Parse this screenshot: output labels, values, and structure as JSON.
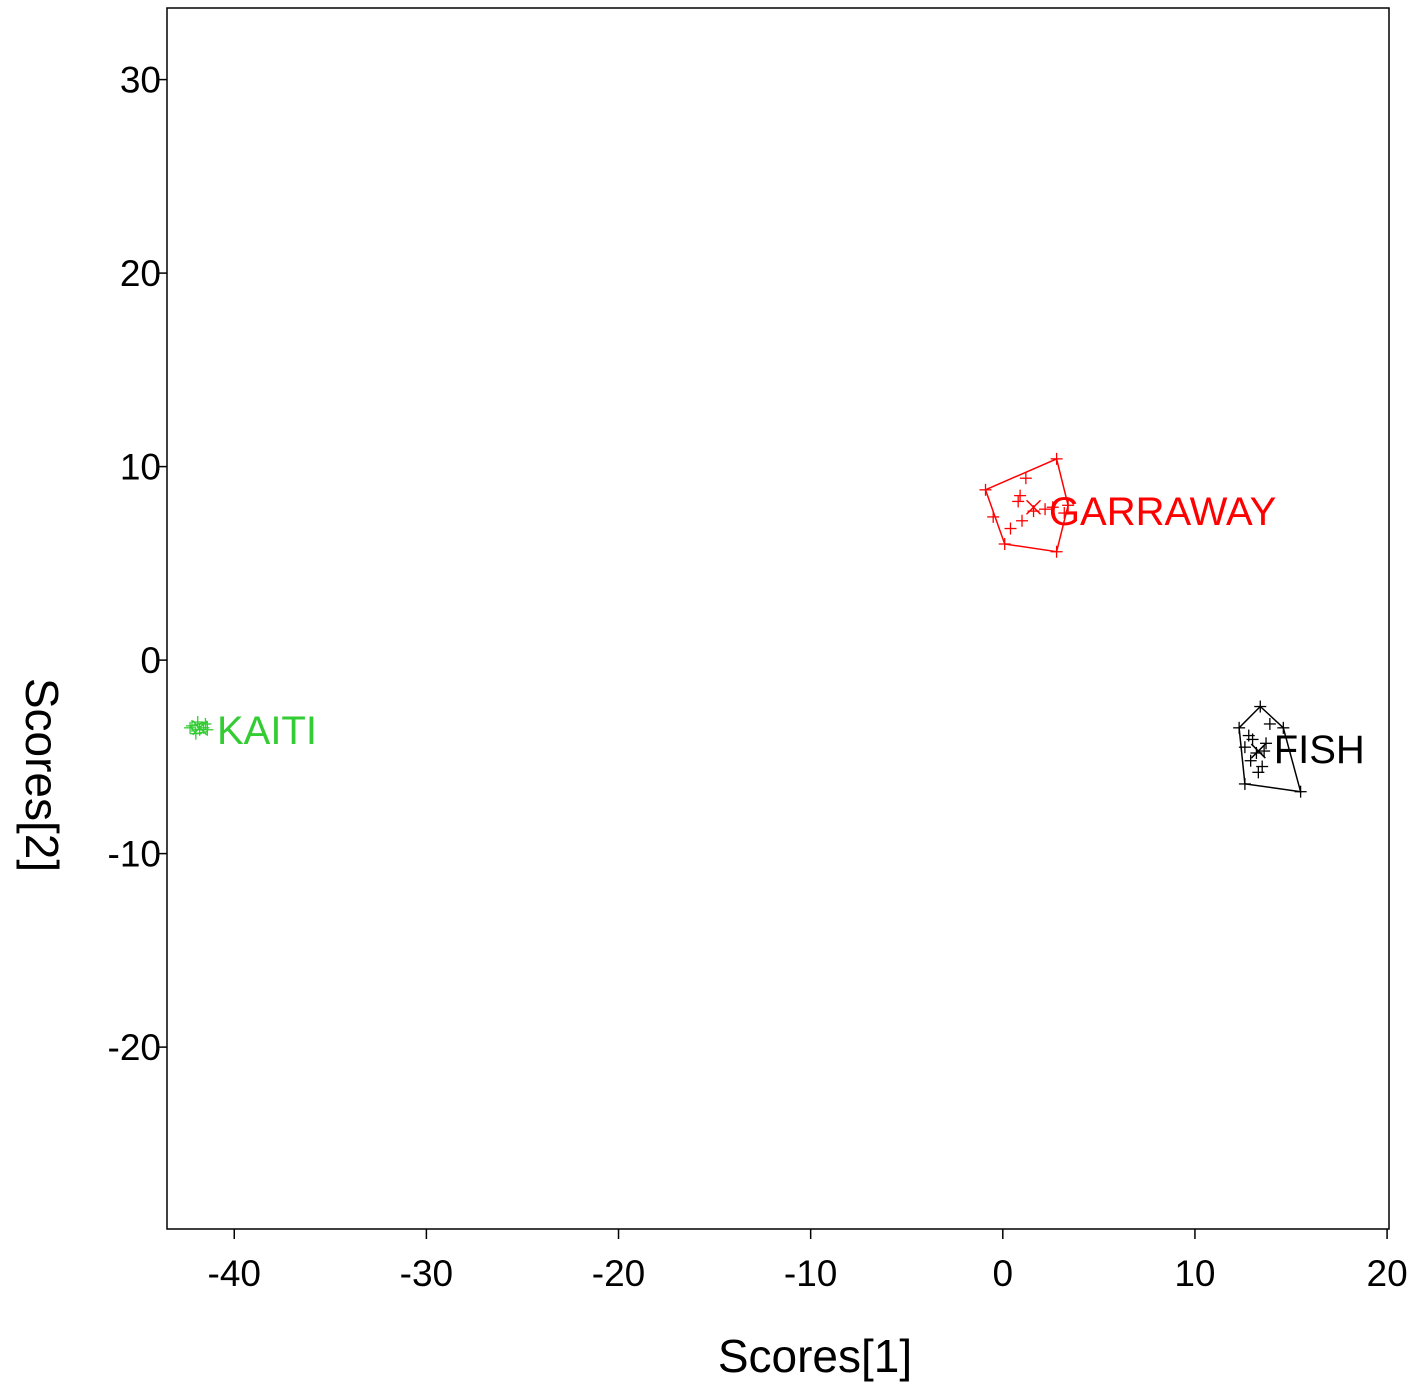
{
  "chart_data": {
    "type": "scatter",
    "title": "",
    "xlabel": "Scores[1]",
    "ylabel": "Scores[2]",
    "xlim": [
      -43.5,
      20.1
    ],
    "ylim": [
      -29.4,
      33.7
    ],
    "x_ticks": [
      -40,
      -30,
      -20,
      -10,
      0,
      10,
      20
    ],
    "y_ticks": [
      30,
      20,
      10,
      0,
      -10,
      -20
    ],
    "grid": false,
    "legend": "none",
    "series": [
      {
        "name": "GARRAWAY",
        "color": "#ff0000",
        "points": [
          [
            -0.9,
            8.8
          ],
          [
            2.8,
            10.4
          ],
          [
            3.4,
            8.0
          ],
          [
            2.8,
            5.6
          ],
          [
            0.1,
            6.0
          ],
          [
            1.2,
            9.4
          ],
          [
            0.8,
            8.2
          ],
          [
            0.9,
            8.5
          ],
          [
            2.2,
            7.8
          ],
          [
            2.6,
            7.9
          ],
          [
            1.6,
            7.7
          ],
          [
            1.0,
            7.2
          ],
          [
            0.4,
            6.8
          ],
          [
            -0.5,
            7.4
          ],
          [
            3.2,
            7.6
          ]
        ],
        "hull": [
          [
            -0.9,
            8.8
          ],
          [
            2.8,
            10.4
          ],
          [
            3.4,
            8.0
          ],
          [
            2.8,
            5.6
          ],
          [
            0.1,
            6.0
          ]
        ],
        "centroid": [
          1.6,
          7.9
        ],
        "label_position": [
          2.4,
          7.7
        ]
      },
      {
        "name": "FISH",
        "color": "#000000",
        "points": [
          [
            13.4,
            -2.4
          ],
          [
            14.6,
            -3.5
          ],
          [
            15.5,
            -6.8
          ],
          [
            12.6,
            -6.4
          ],
          [
            12.3,
            -3.5
          ],
          [
            12.6,
            -4.5
          ],
          [
            13.0,
            -4.1
          ],
          [
            13.2,
            -4.8
          ],
          [
            13.5,
            -5.5
          ],
          [
            13.9,
            -3.3
          ],
          [
            12.9,
            -5.2
          ],
          [
            13.7,
            -4.3
          ],
          [
            12.8,
            -3.9
          ],
          [
            13.3,
            -5.8
          ],
          [
            13.6,
            -4.7
          ]
        ],
        "hull": [
          [
            13.4,
            -2.4
          ],
          [
            14.6,
            -3.5
          ],
          [
            15.5,
            -6.8
          ],
          [
            12.6,
            -6.4
          ],
          [
            12.3,
            -3.5
          ]
        ],
        "centroid": [
          13.3,
          -4.7
        ],
        "label_position": [
          14.1,
          -4.6
        ]
      },
      {
        "name": "KAITI",
        "color": "#33cc33",
        "points": [
          [
            -42.2,
            -3.4
          ],
          [
            -41.8,
            -3.6
          ],
          [
            -41.5,
            -3.3
          ],
          [
            -42.0,
            -3.8
          ],
          [
            -41.6,
            -3.5
          ],
          [
            -41.9,
            -3.2
          ],
          [
            -41.4,
            -3.6
          ],
          [
            -42.3,
            -3.5
          ]
        ],
        "hull": [
          [
            -42.3,
            -3.4
          ],
          [
            -41.4,
            -3.2
          ],
          [
            -41.4,
            -3.7
          ],
          [
            -42.0,
            -3.8
          ]
        ],
        "centroid": [
          -41.8,
          -3.5
        ],
        "label_position": [
          -40.9,
          -3.6
        ]
      }
    ]
  }
}
